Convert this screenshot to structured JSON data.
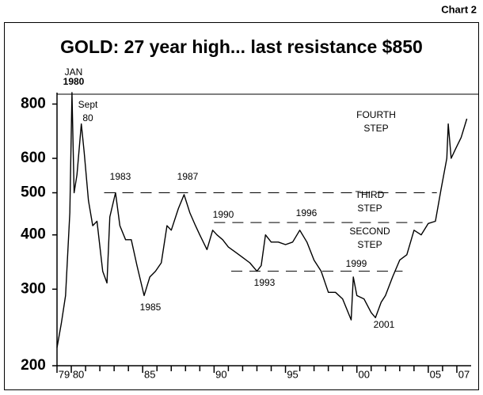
{
  "chart_data": {
    "type": "line",
    "chart_label": "Chart 2",
    "title": "GOLD:  27 year high... last resistance $850",
    "log_scale": true,
    "ylim": [
      200,
      850
    ],
    "yticks": [
      200,
      300,
      400,
      500,
      600,
      800
    ],
    "xlim": [
      1979,
      2008
    ],
    "xticks": [
      {
        "value": 1979,
        "label": "79"
      },
      {
        "value": 1980,
        "label": "80"
      },
      {
        "value": 1985,
        "label": "85"
      },
      {
        "value": 1990,
        "label": "90"
      },
      {
        "value": 1995,
        "label": "95"
      },
      {
        "value": 2000,
        "label": "00"
      },
      {
        "value": 2005,
        "label": "05"
      },
      {
        "value": 2007,
        "label": "07"
      }
    ],
    "xminorticks": [
      1981,
      1982,
      1983,
      1984,
      1986,
      1987,
      1988,
      1989,
      1991,
      1992,
      1993,
      1994,
      1996,
      1997,
      1998,
      1999,
      2001,
      2002,
      2003,
      2004,
      2006
    ],
    "series": [
      {
        "color": "#000000",
        "x": [
          1979.0,
          1979.3,
          1979.6,
          1979.9,
          1980.05,
          1980.2,
          1980.4,
          1980.7,
          1980.9,
          1981.2,
          1981.5,
          1981.8,
          1982.2,
          1982.5,
          1982.7,
          1983.1,
          1983.4,
          1983.8,
          1984.2,
          1984.6,
          1985.1,
          1985.5,
          1985.9,
          1986.3,
          1986.7,
          1987.0,
          1987.5,
          1987.9,
          1988.3,
          1988.7,
          1989.0,
          1989.5,
          1989.9,
          1990.2,
          1990.6,
          1991.0,
          1991.5,
          1992.0,
          1992.5,
          1993.0,
          1993.3,
          1993.6,
          1994.0,
          1994.5,
          1995.0,
          1995.5,
          1996.0,
          1996.5,
          1997.0,
          1997.5,
          1998.0,
          1998.5,
          1999.0,
          1999.6,
          1999.75,
          2000.0,
          2000.5,
          2001.0,
          2001.3,
          2001.7,
          2002.0,
          2002.5,
          2003.0,
          2003.5,
          2004.0,
          2004.5,
          2005.0,
          2005.5,
          2005.9,
          2006.3,
          2006.4,
          2006.6,
          2006.9,
          2007.3,
          2007.7
        ],
        "values": [
          220,
          250,
          290,
          450,
          850,
          500,
          550,
          720,
          620,
          480,
          420,
          430,
          330,
          310,
          440,
          500,
          420,
          390,
          390,
          340,
          290,
          320,
          330,
          345,
          420,
          410,
          460,
          495,
          450,
          420,
          400,
          370,
          410,
          400,
          390,
          375,
          365,
          355,
          345,
          330,
          340,
          400,
          385,
          385,
          380,
          385,
          410,
          385,
          350,
          330,
          295,
          295,
          285,
          255,
          320,
          290,
          285,
          265,
          258,
          280,
          290,
          320,
          350,
          360,
          410,
          400,
          425,
          430,
          510,
          600,
          720,
          600,
          630,
          670,
          740
        ]
      }
    ],
    "reference_lines": [
      {
        "value": 500,
        "xrange": [
          1982.3,
          2005.6
        ]
      },
      {
        "value": 427,
        "xrange": [
          1990.0,
          2004.6
        ]
      },
      {
        "value": 330,
        "xrange": [
          1991.2,
          2003.2
        ]
      }
    ],
    "annotations": [
      [
        "JAN",
        "1980"
      ],
      [
        "Sept",
        "80"
      ],
      [
        "1983"
      ],
      [
        "1987"
      ],
      [
        "1990"
      ],
      [
        "1996"
      ],
      [
        "FOURTH",
        "STEP"
      ],
      [
        "THIRD",
        "STEP"
      ],
      [
        "SECOND",
        "STEP"
      ],
      [
        "1993"
      ],
      [
        "1999"
      ],
      [
        "1985"
      ],
      [
        "2001"
      ]
    ]
  }
}
